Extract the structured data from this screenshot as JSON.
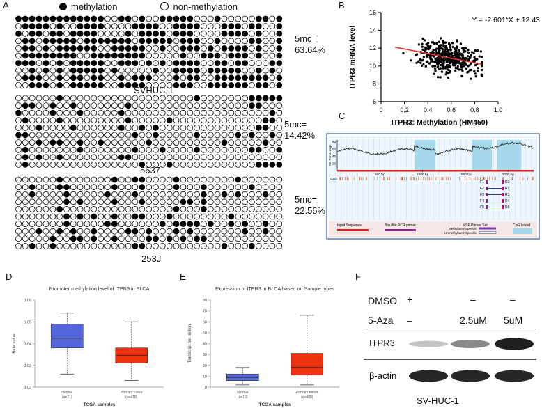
{
  "panels": {
    "a": {
      "label": "A",
      "legend": {
        "methylated": "methylation",
        "unmethylated": "non-methylation"
      },
      "blocks": [
        {
          "name": "SVHUC-1",
          "percent_label": "5mc=",
          "percent_value": "63.64%",
          "methylated_fraction": 0.6364
        },
        {
          "name": "5637",
          "percent_label": "5mc=",
          "percent_value": "14.42%",
          "methylated_fraction": 0.1442
        },
        {
          "name": "253J",
          "percent_label": "5mc=",
          "percent_value": "22.56%",
          "methylated_fraction": 0.2256
        }
      ]
    },
    "b": {
      "label": "B"
    },
    "c": {
      "label": "C",
      "gc_axis_title": "GC Percentage",
      "gc_ticks": [
        "80",
        "60",
        "40",
        "20"
      ],
      "bp_ticks": [
        "500 bp",
        "1000 bp",
        "1500 bp",
        "2000 bp"
      ],
      "cpg_label": "CpG",
      "primers": [
        {
          "f": "F1",
          "r": "R1"
        },
        {
          "f": "F2",
          "r": "R2"
        },
        {
          "f": "F3",
          "r": "R3"
        },
        {
          "f": "F4",
          "r": "R4"
        },
        {
          "f": "F5",
          "r": "R5"
        }
      ],
      "legend": {
        "input": "Input Sequence",
        "bisulfite": "Bisulfite PCR primer",
        "msp": "MSP Primer Set",
        "meth_specific": "Methylated-Specific",
        "unmeth_specific": "Unmethylated-Specific",
        "island": "CpG Island"
      }
    },
    "d": {
      "label": "D"
    },
    "e": {
      "label": "E"
    },
    "f": {
      "label": "F",
      "rows": [
        {
          "name": "DMSO",
          "values": [
            "+",
            "–",
            "–"
          ]
        },
        {
          "name": "5-Aza",
          "values": [
            "–",
            "2.5uM",
            "5uM"
          ]
        }
      ],
      "bands": [
        {
          "name": "ITPR3",
          "intensities": [
            0.25,
            0.5,
            0.95
          ]
        },
        {
          "name": "β-actin",
          "intensities": [
            0.92,
            0.92,
            0.92
          ]
        }
      ],
      "cell_line": "SV-HUC-1"
    }
  },
  "chart_data": [
    {
      "id": "b",
      "type": "scatter",
      "title": "",
      "equation": "Y = -2.601*X + 12.43",
      "slope": -2.601,
      "intercept": 12.43,
      "xlabel": "ITPR3: Methylation (HM450)",
      "ylabel": "ITPR3 mRNA level",
      "xlim": [
        0,
        1.0
      ],
      "ylim": [
        6,
        16
      ],
      "x_ticks": [
        "0",
        "0.2",
        "0.4",
        "0.6",
        "0.8",
        "1.0"
      ],
      "y_ticks": [
        "6",
        "8",
        "10",
        "12",
        "14",
        "16"
      ],
      "n_points": 400,
      "x_mean": 0.58,
      "x_sd": 0.13,
      "y_sd": 0.85,
      "line_color": "#e8312a"
    },
    {
      "id": "d",
      "type": "box",
      "title": "Promoter methylation level of ITPR3 in BLCA",
      "xlabel": "TCGA samples",
      "ylabel": "Beta value",
      "ylim": [
        0.02,
        0.06
      ],
      "y_ticks": [
        "0.02",
        "0.03",
        "0.04",
        "0.05",
        "0.06"
      ],
      "groups": [
        {
          "name": "Normal",
          "n": "(n=21)",
          "min": 0.026,
          "q1": 0.038,
          "median": 0.0425,
          "q3": 0.049,
          "max": 0.054,
          "color": "#5566dd"
        },
        {
          "name": "Primary tumor",
          "n": "(n=418)",
          "min": 0.023,
          "q1": 0.031,
          "median": 0.0345,
          "q3": 0.038,
          "max": 0.05,
          "color": "#ee3311"
        }
      ]
    },
    {
      "id": "e",
      "type": "box",
      "title": "Expression of ITPR3 in BLCA based on Sample types",
      "xlabel": "TCGA samples",
      "ylabel": "Transcript per million",
      "ylim": [
        0,
        80
      ],
      "y_ticks": [
        "0",
        "10",
        "20",
        "30",
        "40",
        "50",
        "60",
        "70",
        "80"
      ],
      "groups": [
        {
          "name": "Normal",
          "n": "(n=19)",
          "min": 2,
          "q1": 6,
          "median": 9,
          "q3": 12,
          "max": 18,
          "color": "#5566dd"
        },
        {
          "name": "Primary tumor",
          "n": "(n=408)",
          "min": 2,
          "q1": 11,
          "median": 18,
          "q3": 31,
          "max": 66,
          "color": "#ee3311"
        }
      ]
    }
  ]
}
